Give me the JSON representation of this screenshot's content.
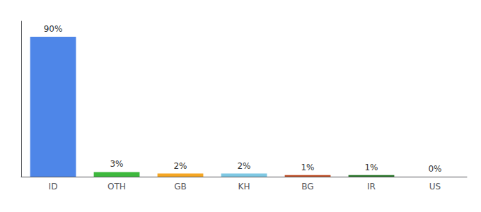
{
  "chart_data": {
    "type": "bar",
    "categories": [
      "ID",
      "OTH",
      "GB",
      "KH",
      "BG",
      "IR",
      "US"
    ],
    "values": [
      90,
      3,
      2,
      2,
      1,
      1,
      0
    ],
    "value_labels": [
      "90%",
      "3%",
      "2%",
      "2%",
      "1%",
      "1%",
      "0%"
    ],
    "colors": [
      "#4e86e8",
      "#3db83d",
      "#f5a623",
      "#7ec8e3",
      "#c0522a",
      "#2d7a2d",
      "#aaaaaa"
    ],
    "ylim": [
      0,
      100
    ],
    "yticks": [],
    "grid": false,
    "data_labels": true,
    "tick_labels": "x"
  }
}
